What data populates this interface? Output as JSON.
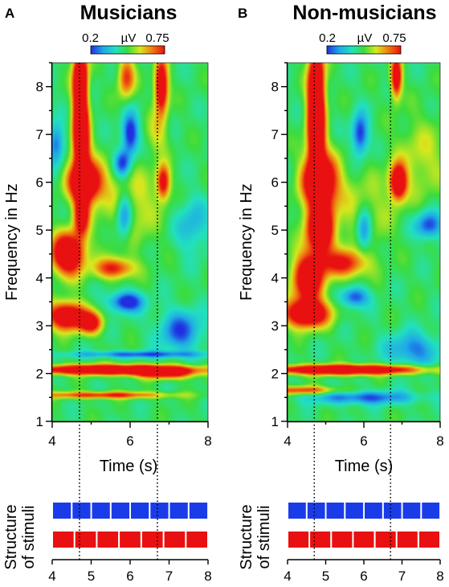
{
  "figure": {
    "panels": [
      {
        "letter": "A",
        "title": "Musicians",
        "colorbar": {
          "min_label": "0.2",
          "unit_label": "µV",
          "max_label": "0.75"
        },
        "ylabel": "Frequency in Hz",
        "xlabel": "Time (s)",
        "stimuli_label_line1": "Structure",
        "stimuli_label_line2": "of stimuli"
      },
      {
        "letter": "B",
        "title": "Non-musicians",
        "colorbar": {
          "min_label": "0.2",
          "unit_label": "µV",
          "max_label": "0.75"
        },
        "ylabel": "Frequency in Hz",
        "xlabel": "Time (s)",
        "stimuli_label_line1": "Structure",
        "stimuli_label_line2": "of stimuli"
      }
    ]
  },
  "chart_data": [
    {
      "type": "heatmap",
      "title": "Musicians",
      "xlabel": "Time (s)",
      "ylabel": "Frequency in Hz",
      "xlim": [
        4,
        8
      ],
      "ylim": [
        1,
        8.5
      ],
      "x_ticks": [
        "4",
        "6",
        "8"
      ],
      "y_ticks": [
        "1",
        "2",
        "3",
        "4",
        "5",
        "6",
        "7",
        "8"
      ],
      "colorbar_range_uV": [
        0.2,
        0.75
      ],
      "colormap": [
        "#1f2fe0",
        "#1fa8e8",
        "#22e0c0",
        "#3cdc3c",
        "#d8e81e",
        "#f07a10",
        "#e81010"
      ],
      "vlines_s": [
        4.7,
        6.7
      ],
      "blobs": [
        {
          "t": 4.72,
          "f": 8.2,
          "st": 0.13,
          "sf": 0.45,
          "a": 0.95
        },
        {
          "t": 4.72,
          "f": 7.4,
          "st": 0.12,
          "sf": 0.45,
          "a": 0.8
        },
        {
          "t": 4.75,
          "f": 6.8,
          "st": 0.15,
          "sf": 0.4,
          "a": 0.85
        },
        {
          "t": 4.85,
          "f": 6.0,
          "st": 0.3,
          "sf": 0.3,
          "a": 1.0
        },
        {
          "t": 4.75,
          "f": 5.3,
          "st": 0.14,
          "sf": 0.3,
          "a": 0.7
        },
        {
          "t": 4.4,
          "f": 4.5,
          "st": 0.3,
          "sf": 0.3,
          "a": 0.95
        },
        {
          "t": 4.4,
          "f": 3.2,
          "st": 0.35,
          "sf": 0.2,
          "a": 0.9
        },
        {
          "t": 5.0,
          "f": 3.05,
          "st": 0.2,
          "sf": 0.15,
          "a": 0.6
        },
        {
          "t": 5.6,
          "f": 4.2,
          "st": 0.35,
          "sf": 0.15,
          "a": 0.55
        },
        {
          "t": 6.8,
          "f": 8.0,
          "st": 0.12,
          "sf": 0.4,
          "a": 0.85
        },
        {
          "t": 6.85,
          "f": 6.0,
          "st": 0.12,
          "sf": 0.25,
          "a": 0.65
        },
        {
          "t": 5.9,
          "f": 8.2,
          "st": 0.15,
          "sf": 0.3,
          "a": 0.5
        },
        {
          "t": 6.0,
          "f": 5.5,
          "st": 0.5,
          "sf": 0.6,
          "a": 0.25
        },
        {
          "t": 5.5,
          "f": 2.08,
          "st": 1.5,
          "sf": 0.07,
          "a": 1.05
        },
        {
          "t": 6.9,
          "f": 2.0,
          "st": 0.5,
          "sf": 0.08,
          "a": 0.6
        },
        {
          "t": 5.3,
          "f": 1.55,
          "st": 1.2,
          "sf": 0.05,
          "a": 0.55
        },
        {
          "t": 6.7,
          "f": 7.0,
          "st": 0.2,
          "sf": 0.3,
          "a": 0.2
        },
        {
          "t": 6.0,
          "f": 7.0,
          "st": 0.15,
          "sf": 0.3,
          "a": -0.55
        },
        {
          "t": 5.8,
          "f": 6.4,
          "st": 0.15,
          "sf": 0.2,
          "a": -0.45
        },
        {
          "t": 5.85,
          "f": 5.3,
          "st": 0.15,
          "sf": 0.35,
          "a": -0.5
        },
        {
          "t": 5.9,
          "f": 3.5,
          "st": 0.3,
          "sf": 0.15,
          "a": -0.55
        },
        {
          "t": 4.1,
          "f": 6.8,
          "st": 0.15,
          "sf": 0.3,
          "a": -0.4
        },
        {
          "t": 7.3,
          "f": 2.9,
          "st": 0.4,
          "sf": 0.3,
          "a": -0.4
        },
        {
          "t": 7.6,
          "f": 5.1,
          "st": 0.3,
          "sf": 0.4,
          "a": -0.25
        },
        {
          "t": 6.2,
          "f": 2.4,
          "st": 1.2,
          "sf": 0.05,
          "a": -0.4
        }
      ]
    },
    {
      "type": "heatmap",
      "title": "Non-musicians",
      "xlabel": "Time (s)",
      "ylabel": "Frequency in Hz",
      "xlim": [
        4,
        8
      ],
      "ylim": [
        1,
        8.5
      ],
      "x_ticks": [
        "4",
        "6",
        "8"
      ],
      "y_ticks": [
        "1",
        "2",
        "3",
        "4",
        "5",
        "6",
        "7",
        "8"
      ],
      "colorbar_range_uV": [
        0.2,
        0.75
      ],
      "colormap": [
        "#1f2fe0",
        "#1fa8e8",
        "#22e0c0",
        "#3cdc3c",
        "#d8e81e",
        "#f07a10",
        "#e81010"
      ],
      "vlines_s": [
        4.7,
        6.7
      ],
      "blobs": [
        {
          "t": 4.75,
          "f": 8.0,
          "st": 0.15,
          "sf": 0.6,
          "a": 1.0
        },
        {
          "t": 4.75,
          "f": 7.0,
          "st": 0.15,
          "sf": 0.5,
          "a": 0.95
        },
        {
          "t": 4.85,
          "f": 6.0,
          "st": 0.32,
          "sf": 0.4,
          "a": 1.0
        },
        {
          "t": 4.85,
          "f": 5.0,
          "st": 0.25,
          "sf": 0.35,
          "a": 0.95
        },
        {
          "t": 4.55,
          "f": 4.0,
          "st": 0.3,
          "sf": 0.35,
          "a": 0.85
        },
        {
          "t": 4.5,
          "f": 3.25,
          "st": 0.4,
          "sf": 0.2,
          "a": 0.9
        },
        {
          "t": 5.5,
          "f": 4.3,
          "st": 0.4,
          "sf": 0.2,
          "a": 0.55
        },
        {
          "t": 6.9,
          "f": 6.0,
          "st": 0.15,
          "sf": 0.25,
          "a": 0.9
        },
        {
          "t": 6.85,
          "f": 8.2,
          "st": 0.1,
          "sf": 0.3,
          "a": 0.8
        },
        {
          "t": 5.5,
          "f": 2.08,
          "st": 1.4,
          "sf": 0.07,
          "a": 1.05
        },
        {
          "t": 4.4,
          "f": 1.65,
          "st": 0.7,
          "sf": 0.06,
          "a": 0.5
        },
        {
          "t": 6.0,
          "f": 5.3,
          "st": 0.5,
          "sf": 0.6,
          "a": 0.2
        },
        {
          "t": 7.5,
          "f": 6.5,
          "st": 0.5,
          "sf": 0.6,
          "a": 0.2
        },
        {
          "t": 5.9,
          "f": 7.0,
          "st": 0.15,
          "sf": 0.3,
          "a": -0.5
        },
        {
          "t": 6.0,
          "f": 5.0,
          "st": 0.15,
          "sf": 0.3,
          "a": -0.5
        },
        {
          "t": 5.75,
          "f": 3.6,
          "st": 0.25,
          "sf": 0.15,
          "a": -0.45
        },
        {
          "t": 7.7,
          "f": 5.1,
          "st": 0.25,
          "sf": 0.2,
          "a": -0.45
        },
        {
          "t": 7.3,
          "f": 2.5,
          "st": 0.5,
          "sf": 0.25,
          "a": -0.35
        },
        {
          "t": 6.0,
          "f": 1.5,
          "st": 1.0,
          "sf": 0.1,
          "a": -0.4
        }
      ]
    },
    {
      "type": "bar",
      "title": "Structure of stimuli",
      "xlim": [
        4,
        8
      ],
      "x_ticks": [
        "4",
        "5",
        "6",
        "7",
        "8"
      ],
      "rows": [
        {
          "color": "#1a3ce8",
          "count": 8
        },
        {
          "color": "#e81010",
          "count": 7
        }
      ]
    }
  ]
}
